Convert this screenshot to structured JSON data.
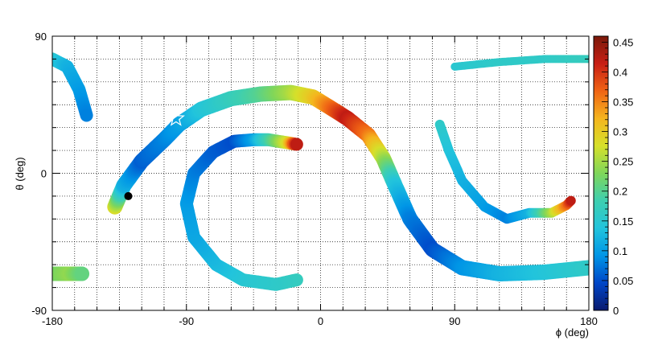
{
  "chart_data": {
    "type": "heatmap",
    "title": "",
    "xlabel": "ϕ (deg)",
    "ylabel": "θ (deg)",
    "xlim": [
      -180,
      180
    ],
    "ylim": [
      -90,
      90
    ],
    "x_ticks": [
      -180,
      -90,
      0,
      90,
      180
    ],
    "y_ticks": [
      -90,
      0,
      90
    ],
    "grid": true,
    "colorbar": {
      "min": 0,
      "max": 0.46,
      "ticks": [
        0,
        0.05,
        0.1,
        0.15,
        0.2,
        0.25,
        0.3,
        0.35,
        0.4,
        0.45
      ],
      "tick_labels": [
        "0",
        "0.05",
        "0.1",
        "0.15",
        "0.2",
        "0.25",
        "0.3",
        "0.35",
        "0.4",
        "0.45"
      ],
      "colormap": [
        "#0a1a6e",
        "#0046c8",
        "#0096e6",
        "#22c4dc",
        "#3ecfb0",
        "#7fd65a",
        "#d6e02a",
        "#f5b51e",
        "#f06414",
        "#c81e14",
        "#7a1a0a"
      ]
    },
    "bands": [
      {
        "name": "band-main",
        "width": 19,
        "points": [
          [
            -138,
            -22,
            0.28
          ],
          [
            -132,
            -8,
            0.12
          ],
          [
            -120,
            8,
            0.06
          ],
          [
            -105,
            22,
            0.08
          ],
          [
            -95,
            32,
            0.1
          ],
          [
            -80,
            42,
            0.14
          ],
          [
            -60,
            49,
            0.17
          ],
          [
            -40,
            52,
            0.2
          ],
          [
            -20,
            53,
            0.25
          ],
          [
            -5,
            50,
            0.3
          ],
          [
            5,
            44,
            0.35
          ],
          [
            18,
            36,
            0.42
          ],
          [
            32,
            25,
            0.36
          ],
          [
            42,
            10,
            0.26
          ],
          [
            50,
            -8,
            0.14
          ],
          [
            60,
            -30,
            0.08
          ],
          [
            75,
            -50,
            0.05
          ],
          [
            95,
            -62,
            0.09
          ],
          [
            120,
            -66,
            0.12
          ],
          [
            150,
            -65,
            0.14
          ],
          [
            180,
            -62,
            0.16
          ]
        ]
      },
      {
        "name": "band-left-arc",
        "width": 16,
        "points": [
          [
            -16,
            -70,
            0.17
          ],
          [
            -30,
            -73,
            0.16
          ],
          [
            -52,
            -70,
            0.15
          ],
          [
            -70,
            -60,
            0.13
          ],
          [
            -85,
            -42,
            0.11
          ],
          [
            -90,
            -20,
            0.1
          ],
          [
            -85,
            0,
            0.08
          ],
          [
            -72,
            14,
            0.06
          ],
          [
            -58,
            21,
            0.05
          ],
          [
            -45,
            22,
            0.1
          ],
          [
            -35,
            22,
            0.18
          ],
          [
            -22,
            20,
            0.28
          ],
          [
            -16,
            19,
            0.42
          ]
        ]
      },
      {
        "name": "band-right-arc",
        "width": 12,
        "points": [
          [
            80,
            32,
            0.16
          ],
          [
            86,
            15,
            0.14
          ],
          [
            95,
            -5,
            0.12
          ],
          [
            110,
            -22,
            0.1
          ],
          [
            125,
            -30,
            0.08
          ],
          [
            140,
            -26,
            0.12
          ],
          [
            155,
            -26,
            0.25
          ],
          [
            165,
            -21,
            0.36
          ],
          [
            168,
            -18,
            0.42
          ]
        ]
      },
      {
        "name": "band-top-right",
        "width": 10,
        "points": [
          [
            90,
            70,
            0.15
          ],
          [
            120,
            73,
            0.16
          ],
          [
            150,
            75,
            0.16
          ],
          [
            180,
            75,
            0.17
          ]
        ]
      },
      {
        "name": "band-top-left",
        "width": 16,
        "points": [
          [
            -180,
            75,
            0.15
          ],
          [
            -170,
            70,
            0.12
          ],
          [
            -162,
            55,
            0.1
          ],
          [
            -157,
            38,
            0.08
          ]
        ]
      },
      {
        "name": "band-bottom-left",
        "width": 18,
        "points": [
          [
            -180,
            -66,
            0.22
          ],
          [
            -168,
            -66,
            0.24
          ],
          [
            -160,
            -66,
            0.21
          ]
        ]
      }
    ],
    "markers": [
      {
        "name": "circle",
        "x": -129,
        "y": -15
      },
      {
        "name": "star",
        "x": -97,
        "y": 36
      }
    ]
  }
}
